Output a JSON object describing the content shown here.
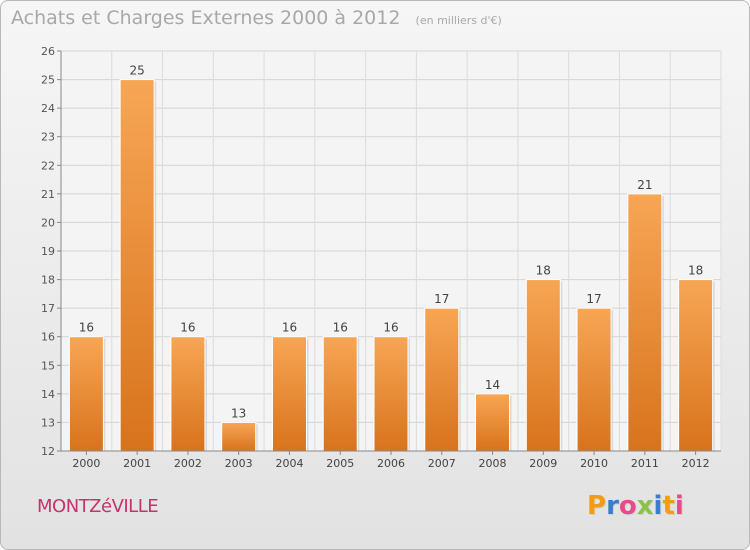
{
  "header": {
    "title": "Achats et Charges Externes 2000 à 2012",
    "subtitle": "(en milliers d'€)"
  },
  "footer": {
    "place": "MONTZéVILLE",
    "logo_letters": [
      "P",
      "r",
      "o",
      "x",
      "i",
      "t",
      "i"
    ],
    "logo_colors": [
      "#f39c12",
      "#3a7dc9",
      "#e94b8a",
      "#8bc34a",
      "#3a7dc9",
      "#f39c12",
      "#e94b8a"
    ]
  },
  "chart_data": {
    "type": "bar",
    "categories": [
      "2000",
      "2001",
      "2002",
      "2003",
      "2004",
      "2005",
      "2006",
      "2007",
      "2008",
      "2009",
      "2010",
      "2011",
      "2012"
    ],
    "values": [
      16,
      25,
      16,
      13,
      16,
      16,
      16,
      17,
      14,
      18,
      17,
      21,
      18
    ],
    "data_labels": [
      "16",
      "25",
      "16",
      "13",
      "16",
      "16",
      "16",
      "17",
      "14",
      "18",
      "17",
      "21",
      "18"
    ],
    "yticks": [
      "12",
      "13",
      "14",
      "15",
      "16",
      "17",
      "18",
      "19",
      "20",
      "21",
      "22",
      "23",
      "24",
      "25",
      "26"
    ],
    "ylim": [
      12,
      26
    ],
    "grid": true,
    "bar_color_top": "#f7a655",
    "bar_color_bottom": "#d8731c"
  }
}
